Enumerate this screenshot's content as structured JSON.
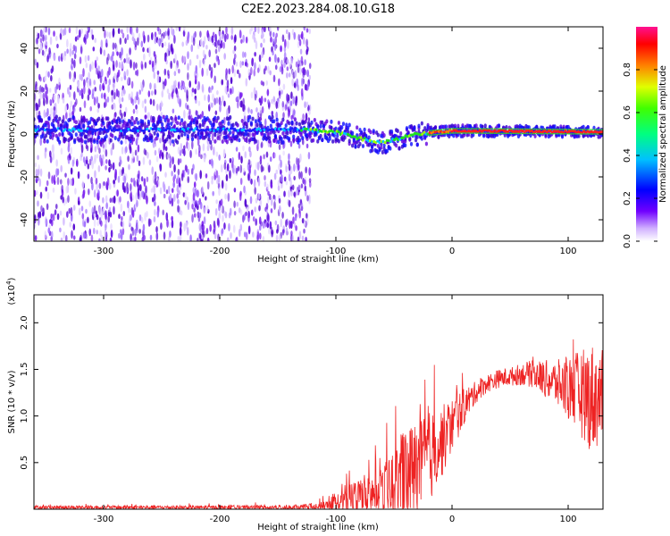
{
  "figure": {
    "title": "C2E2.2023.284.08.10.G18"
  },
  "chart_data": [
    {
      "type": "heatmap",
      "xlabel": "Height of straight line (km)",
      "ylabel": "Frequency (Hz)",
      "xlim": [
        -360,
        130
      ],
      "ylim": [
        -50,
        50
      ],
      "x_ticks": [
        -300,
        -200,
        -100,
        0,
        100
      ],
      "y_ticks": [
        -40,
        -20,
        0,
        20,
        40
      ],
      "colorbar": {
        "label": "Normalized spectral amplitude",
        "range": [
          0,
          1
        ],
        "ticks": [
          "0.0",
          "0.2",
          "0.4",
          "0.6",
          "0.8"
        ],
        "tick_values": [
          0.0,
          0.2,
          0.4,
          0.6,
          0.8
        ],
        "colormap": [
          "#ffffff",
          "#b090ff",
          "#6000ff",
          "#0000ff",
          "#00c0ff",
          "#00ff60",
          "#c0ff00",
          "#ff8000",
          "#ff0000",
          "#ff1080"
        ]
      },
      "features": {
        "noise_region_x": [
          -360,
          -130
        ],
        "noise_color": "#7010e0",
        "ridge_points": [
          [
            -360,
            2
          ],
          [
            -130,
            2
          ],
          [
            -100,
            1
          ],
          [
            -80,
            -2
          ],
          [
            -60,
            -4
          ],
          [
            -45,
            -2
          ],
          [
            -30,
            0
          ],
          [
            -10,
            1
          ],
          [
            0,
            1.5
          ],
          [
            130,
            1
          ]
        ],
        "ridge_color_high": "#ff2020",
        "ridge_color_mid": "#20e020"
      }
    },
    {
      "type": "line",
      "xlabel": "Height of straight line (km)",
      "ylabel": "SNR (10 * v/v)",
      "y_multiplier": "(x10",
      "y_multiplier_exp": "4",
      "xlim": [
        -360,
        130
      ],
      "ylim": [
        0,
        2.3
      ],
      "x_ticks": [
        -300,
        -200,
        -100,
        0,
        100
      ],
      "y_ticks": [
        0.5,
        1.0,
        1.5,
        2.0
      ],
      "y_tick_labels": [
        "0.5",
        "1.0",
        "1.5",
        "2.0"
      ],
      "color": "#ee2222",
      "envelope": {
        "x": [
          -360,
          -300,
          -200,
          -130,
          -110,
          -100,
          -90,
          -80,
          -70,
          -60,
          -50,
          -40,
          -30,
          -20,
          -10,
          0,
          10,
          20,
          30,
          40,
          50,
          60,
          70,
          80,
          90,
          100,
          110,
          120,
          130
        ],
        "base": [
          0.02,
          0.02,
          0.02,
          0.02,
          0.03,
          0.08,
          0.1,
          0.12,
          0.15,
          0.18,
          0.25,
          0.35,
          0.45,
          0.55,
          0.7,
          0.9,
          1.1,
          1.25,
          1.35,
          1.4,
          1.42,
          1.45,
          1.45,
          1.4,
          1.35,
          1.3,
          1.25,
          1.2,
          1.2
        ],
        "amp": [
          0.02,
          0.02,
          0.02,
          0.03,
          0.06,
          0.12,
          0.18,
          0.25,
          0.22,
          0.3,
          0.4,
          0.55,
          0.5,
          0.5,
          0.4,
          0.3,
          0.2,
          0.12,
          0.1,
          0.1,
          0.1,
          0.12,
          0.15,
          0.2,
          0.25,
          0.35,
          0.45,
          0.6,
          0.5
        ]
      }
    }
  ]
}
